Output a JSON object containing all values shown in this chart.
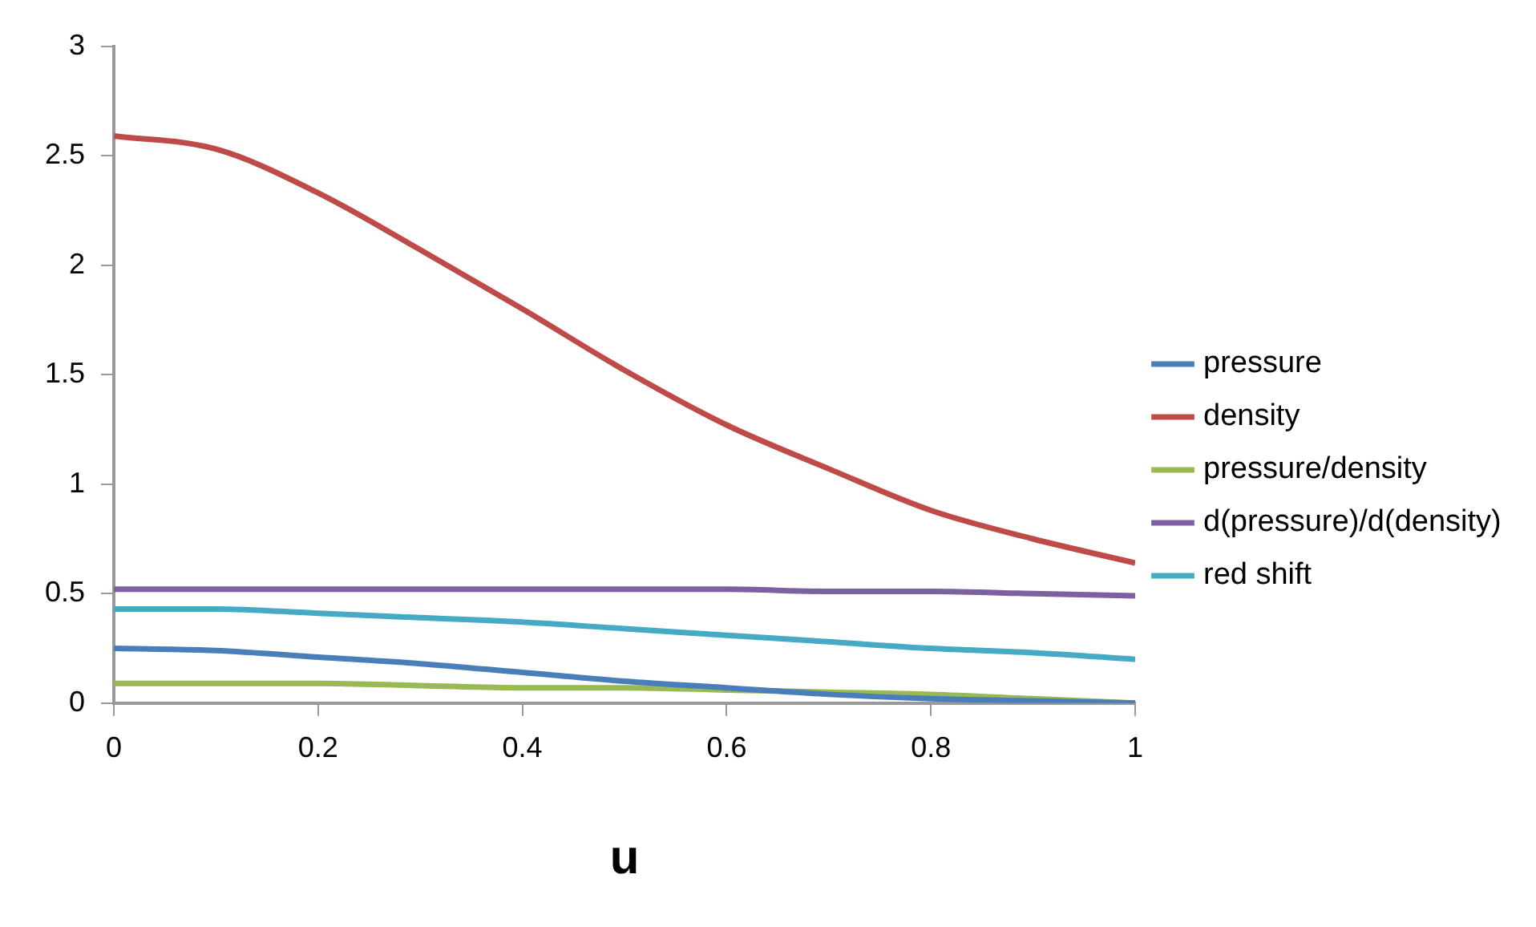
{
  "chart_data": {
    "type": "line",
    "xlabel": "u",
    "x": [
      0,
      0.1,
      0.2,
      0.3,
      0.4,
      0.5,
      0.6,
      0.7,
      0.8,
      0.9,
      1
    ],
    "series": [
      {
        "name": "pressure",
        "color": "#4a7ebb",
        "values": [
          0.25,
          0.24,
          0.21,
          0.18,
          0.14,
          0.1,
          0.07,
          0.04,
          0.02,
          0.01,
          0
        ]
      },
      {
        "name": "density",
        "color": "#be4b48",
        "values": [
          2.59,
          2.53,
          2.33,
          2.07,
          1.8,
          1.52,
          1.27,
          1.07,
          0.88,
          0.75,
          0.64
        ]
      },
      {
        "name": "pressure/density",
        "color": "#98b954",
        "values": [
          0.09,
          0.09,
          0.09,
          0.08,
          0.07,
          0.07,
          0.06,
          0.05,
          0.04,
          0.02,
          0
        ]
      },
      {
        "name": "d(pressure)/d(density)",
        "color": "#7d60a0",
        "values": [
          0.52,
          0.52,
          0.52,
          0.52,
          0.52,
          0.52,
          0.52,
          0.51,
          0.51,
          0.5,
          0.49
        ]
      },
      {
        "name": "red shift",
        "color": "#46aac5",
        "values": [
          0.43,
          0.43,
          0.41,
          0.39,
          0.37,
          0.34,
          0.31,
          0.28,
          0.25,
          0.23,
          0.2
        ]
      }
    ],
    "xlim": [
      0,
      1
    ],
    "xticks": [
      0,
      0.2,
      0.4,
      0.6,
      0.8,
      1
    ],
    "ylim": [
      0,
      3
    ],
    "yticks": [
      0,
      0.5,
      1,
      1.5,
      2,
      2.5,
      3
    ],
    "grid": false,
    "legend": "right",
    "marker": "none",
    "line_style": "solid"
  }
}
